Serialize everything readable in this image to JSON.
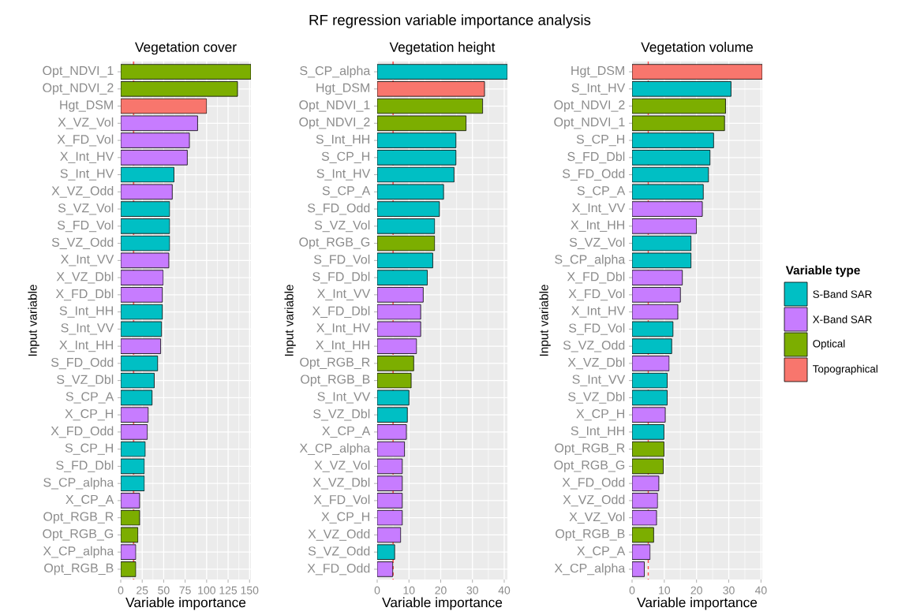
{
  "chart_data": [
    {
      "type": "bar",
      "orientation": "horizontal",
      "title": "Vegetation cover",
      "xlabel": "Variable importance",
      "ylabel": "Input variable",
      "annotations": [
        "RF regression variable importance analysis"
      ],
      "categories": [
        "Opt_NDVI_1",
        "Opt_NDVI_2",
        "Hgt_DSM",
        "X_VZ_Vol",
        "X_FD_Vol",
        "X_Int_HV",
        "S_Int_HV",
        "X_VZ_Odd",
        "S_VZ_Vol",
        "S_FD_Vol",
        "S_VZ_Odd",
        "X_Int_VV",
        "X_VZ_Dbl",
        "X_FD_Dbl",
        "S_Int_HH",
        "S_Int_VV",
        "X_Int_HH",
        "S_FD_Odd",
        "S_VZ_Dbl",
        "S_CP_A",
        "X_CP_H",
        "X_FD_Odd",
        "S_CP_H",
        "S_FD_Dbl",
        "S_CP_alpha",
        "X_CP_A",
        "Opt_RGB_R",
        "Opt_RGB_G",
        "X_CP_alpha",
        "Opt_RGB_B"
      ],
      "values": [
        151.6,
        136,
        100,
        89.5,
        80,
        77.5,
        62,
        60,
        57,
        57,
        57,
        56,
        49.5,
        48.5,
        48.5,
        47.5,
        46.5,
        43,
        39,
        36.5,
        32,
        31,
        28.5,
        27.5,
        27.5,
        22,
        22,
        20,
        17.5,
        17.5
      ],
      "colors": [
        "#7cae00",
        "#7cae00",
        "#f8766d",
        "#c77cff",
        "#c77cff",
        "#c77cff",
        "#00bfc4",
        "#c77cff",
        "#00bfc4",
        "#00bfc4",
        "#00bfc4",
        "#c77cff",
        "#c77cff",
        "#c77cff",
        "#00bfc4",
        "#00bfc4",
        "#c77cff",
        "#00bfc4",
        "#00bfc4",
        "#00bfc4",
        "#c77cff",
        "#c77cff",
        "#00bfc4",
        "#00bfc4",
        "#00bfc4",
        "#c77cff",
        "#7cae00",
        "#7cae00",
        "#c77cff",
        "#7cae00"
      ],
      "xlim": [
        0,
        151.6
      ],
      "xticks": [
        0,
        25,
        50,
        75,
        100,
        125,
        150
      ],
      "grid": true,
      "ref_lines": [
        {
          "axis": "x",
          "value": 15,
          "color": "#ff5050",
          "line_style": "dashed"
        }
      ]
    },
    {
      "type": "bar",
      "orientation": "horizontal",
      "title": "Vegetation height",
      "xlabel": "Variable importance",
      "ylabel": "Input variable",
      "categories": [
        "S_CP_alpha",
        "Hgt_DSM",
        "Opt_NDVI_1",
        "Opt_NDVI_2",
        "S_Int_HH",
        "S_CP_H",
        "S_Int_HV",
        "S_CP_A",
        "S_FD_Odd",
        "S_VZ_Vol",
        "Opt_RGB_G",
        "S_FD_Vol",
        "S_FD_Dbl",
        "X_Int_VV",
        "X_FD_Dbl",
        "X_Int_HV",
        "X_Int_HH",
        "Opt_RGB_R",
        "Opt_RGB_B",
        "S_Int_VV",
        "S_VZ_Dbl",
        "X_CP_A",
        "X_CP_alpha",
        "X_VZ_Vol",
        "X_VZ_Dbl",
        "X_FD_Vol",
        "X_CP_H",
        "X_VZ_Odd",
        "S_VZ_Odd",
        "X_FD_Odd"
      ],
      "values": [
        41,
        33.8,
        33.2,
        28,
        24.8,
        24.8,
        24.2,
        20.9,
        19.6,
        18.1,
        18.1,
        17.5,
        15.8,
        14.5,
        13.7,
        13.7,
        12.4,
        11.5,
        10.7,
        10,
        9.5,
        9.2,
        8.6,
        7.9,
        7.9,
        7.9,
        7.9,
        7.4,
        5.5,
        4.9
      ],
      "colors": [
        "#00bfc4",
        "#f8766d",
        "#7cae00",
        "#7cae00",
        "#00bfc4",
        "#00bfc4",
        "#00bfc4",
        "#00bfc4",
        "#00bfc4",
        "#00bfc4",
        "#7cae00",
        "#00bfc4",
        "#00bfc4",
        "#c77cff",
        "#c77cff",
        "#c77cff",
        "#c77cff",
        "#7cae00",
        "#7cae00",
        "#00bfc4",
        "#00bfc4",
        "#c77cff",
        "#c77cff",
        "#c77cff",
        "#c77cff",
        "#c77cff",
        "#c77cff",
        "#c77cff",
        "#00bfc4",
        "#c77cff"
      ],
      "xlim": [
        0,
        41
      ],
      "xticks": [
        0,
        10,
        20,
        30,
        40
      ],
      "grid": true,
      "ref_lines": [
        {
          "axis": "x",
          "value": 5,
          "color": "#ff5050",
          "line_style": "dashed"
        }
      ]
    },
    {
      "type": "bar",
      "orientation": "horizontal",
      "title": "Vegetation volume",
      "xlabel": "Variable importance",
      "ylabel": "Input variable",
      "categories": [
        "Hgt_DSM",
        "S_Int_HV",
        "Opt_NDVI_2",
        "Opt_NDVI_1",
        "S_CP_H",
        "S_FD_Dbl",
        "S_FD_Odd",
        "S_CP_A",
        "X_Int_VV",
        "X_Int_HH",
        "S_VZ_Vol",
        "S_CP_alpha",
        "X_FD_Dbl",
        "X_FD_Vol",
        "X_Int_HV",
        "S_FD_Vol",
        "S_VZ_Odd",
        "X_VZ_Dbl",
        "S_Int_VV",
        "S_VZ_Dbl",
        "X_CP_H",
        "S_Int_HH",
        "Opt_RGB_R",
        "Opt_RGB_G",
        "X_FD_Odd",
        "X_VZ_Odd",
        "X_VZ_Vol",
        "Opt_RGB_B",
        "X_CP_A",
        "X_CP_alpha"
      ],
      "series": [
        {
          "name": "S-Band SAR",
          "color": "#00bfc4",
          "values": [
            null,
            30.7,
            null,
            null,
            25.3,
            24.2,
            23.7,
            22.1,
            null,
            null,
            18.3,
            18.3,
            null,
            null,
            null,
            12.7,
            12.3,
            null,
            10.9,
            10.9,
            null,
            9.9,
            null,
            null,
            null,
            null,
            null,
            null,
            null,
            null
          ]
        },
        {
          "name": "X-Band SAR",
          "color": "#c77cff",
          "values": [
            null,
            null,
            null,
            null,
            null,
            null,
            null,
            null,
            21.8,
            20,
            null,
            null,
            15.6,
            15,
            14.2,
            null,
            null,
            11.5,
            null,
            null,
            10.3,
            null,
            null,
            null,
            8.3,
            7.9,
            7.6,
            null,
            5.6,
            3.8
          ]
        },
        {
          "name": "Optical",
          "color": "#7cae00",
          "values": [
            null,
            null,
            29,
            28.7,
            null,
            null,
            null,
            null,
            null,
            null,
            null,
            null,
            null,
            null,
            null,
            null,
            null,
            null,
            null,
            null,
            null,
            null,
            9.9,
            9.7,
            null,
            null,
            null,
            6.7,
            null,
            null
          ]
        },
        {
          "name": "Topographical",
          "color": "#f8766d",
          "values": [
            40.4,
            null,
            null,
            null,
            null,
            null,
            null,
            null,
            null,
            null,
            null,
            null,
            null,
            null,
            null,
            null,
            null,
            null,
            null,
            null,
            null,
            null,
            null,
            null,
            null,
            null,
            null,
            null,
            null,
            null
          ]
        }
      ],
      "legend": "right",
      "legend_title": "Variable type",
      "xlim": [
        0,
        40.4
      ],
      "xticks": [
        0,
        10,
        20,
        30,
        40
      ],
      "grid": true,
      "ref_lines": [
        {
          "axis": "x",
          "value": 5,
          "color": "#ff5050",
          "line_style": "dashed"
        }
      ]
    }
  ]
}
